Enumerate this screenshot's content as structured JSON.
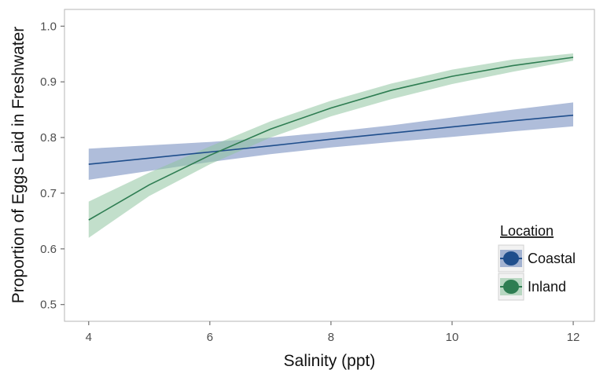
{
  "chart_data": {
    "type": "line",
    "xlabel": "Salinity (ppt)",
    "ylabel": "Proportion of Eggs Laid in Freshwater",
    "xlim": [
      3.6,
      12.35
    ],
    "ylim": [
      0.47,
      1.03
    ],
    "xticks": [
      4,
      6,
      8,
      10,
      12
    ],
    "yticks": [
      0.5,
      0.6,
      0.7,
      0.8,
      0.9,
      1.0
    ],
    "xtick_labels": [
      "4",
      "6",
      "8",
      "10",
      "12"
    ],
    "ytick_labels": [
      "0.5",
      "0.6",
      "0.7",
      "0.8",
      "0.9",
      "1.0"
    ],
    "grid": false,
    "legend": {
      "title": "Location",
      "position": "right"
    },
    "x": [
      4,
      5,
      6,
      7,
      8,
      9,
      10,
      11,
      12
    ],
    "series": [
      {
        "name": "Coastal",
        "color": "#1f4e8c",
        "band_color": "#6d87bb",
        "fit": [
          0.752,
          0.763,
          0.774,
          0.785,
          0.797,
          0.808,
          0.819,
          0.83,
          0.84
        ],
        "lower": [
          0.724,
          0.74,
          0.756,
          0.77,
          0.782,
          0.792,
          0.801,
          0.811,
          0.82
        ],
        "upper": [
          0.78,
          0.786,
          0.792,
          0.8,
          0.81,
          0.822,
          0.836,
          0.85,
          0.863
        ]
      },
      {
        "name": "Inland",
        "color": "#2e7d52",
        "band_color": "#8fc4a0",
        "fit": [
          0.652,
          0.715,
          0.768,
          0.815,
          0.853,
          0.885,
          0.91,
          0.929,
          0.944
        ],
        "lower": [
          0.62,
          0.695,
          0.752,
          0.8,
          0.838,
          0.869,
          0.896,
          0.918,
          0.938
        ],
        "upper": [
          0.685,
          0.737,
          0.784,
          0.829,
          0.866,
          0.897,
          0.922,
          0.94,
          0.951
        ]
      }
    ]
  }
}
